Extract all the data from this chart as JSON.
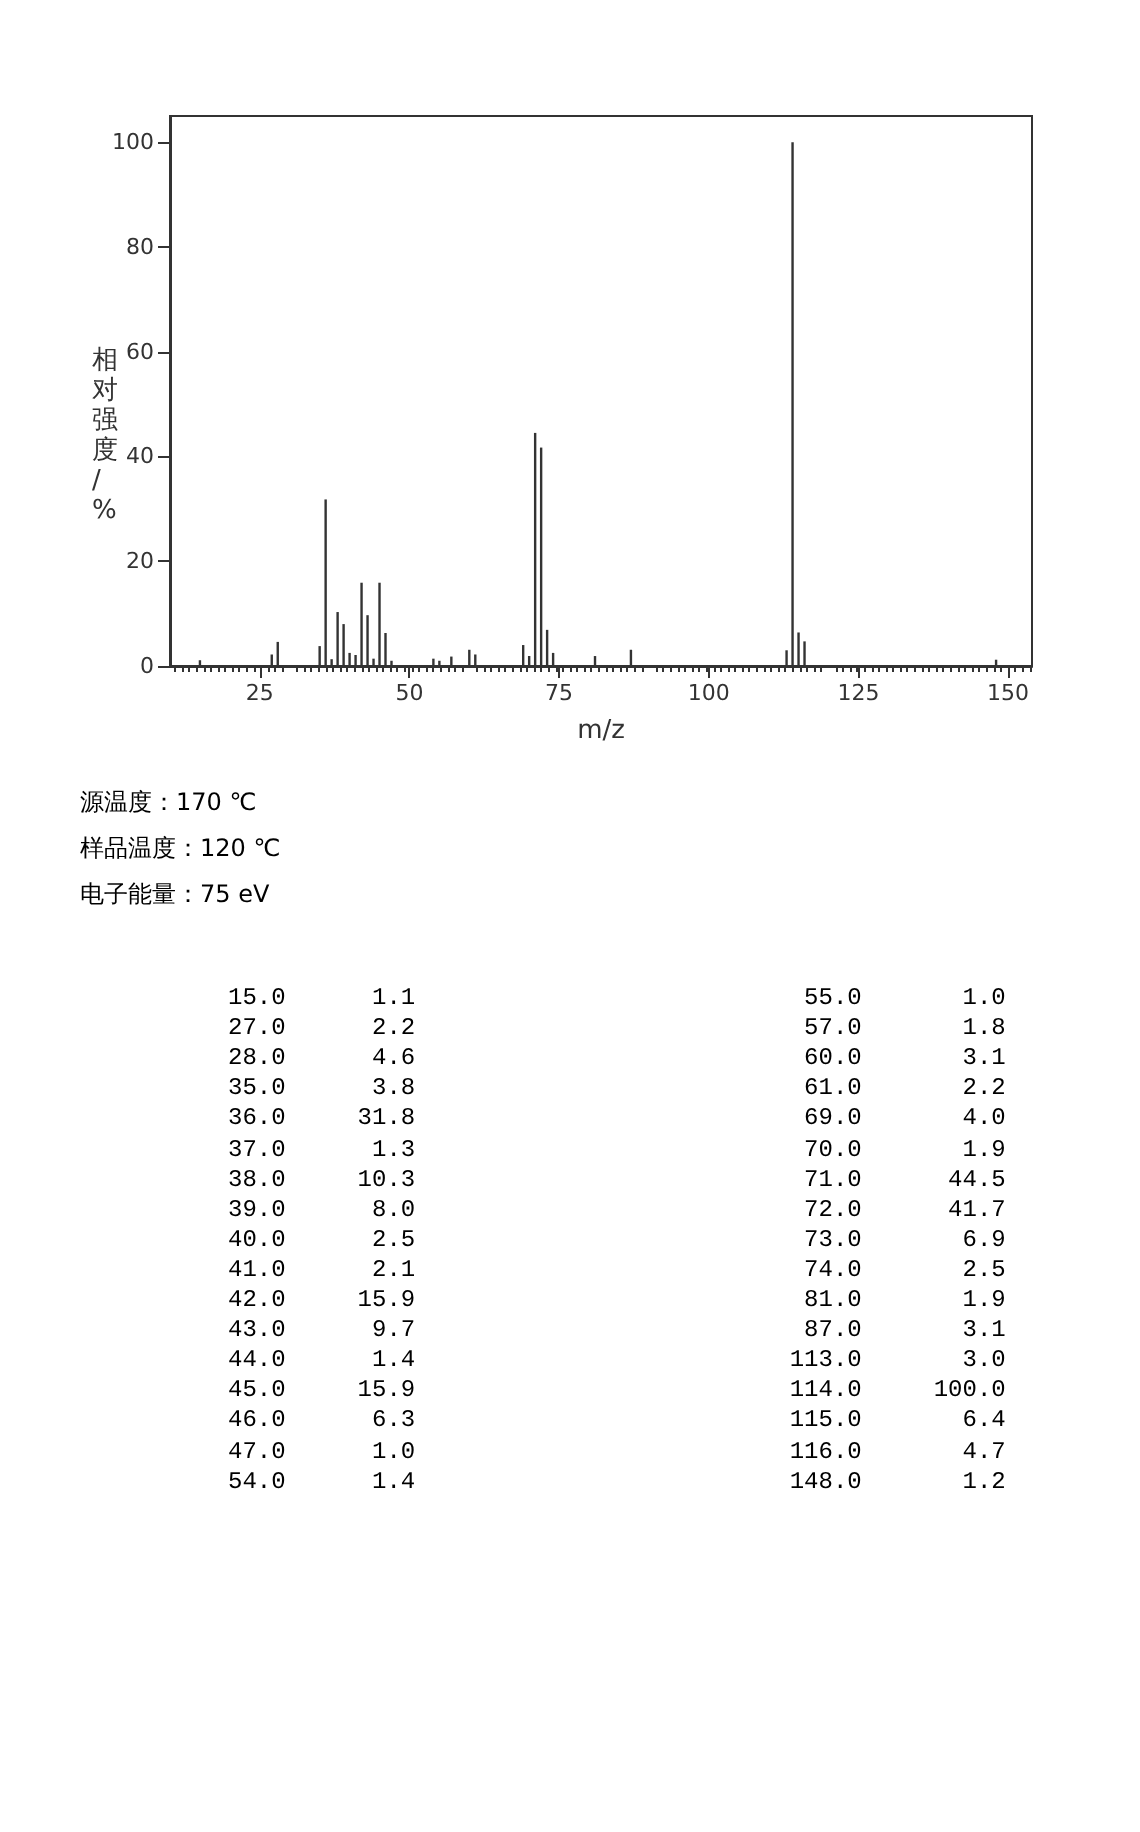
{
  "chart_data": [
    {
      "type": "bar",
      "xlabel": "m/z",
      "ylabel": "相对强度/%",
      "x": [
        15,
        27,
        28,
        35,
        36,
        37,
        38,
        39,
        40,
        41,
        42,
        43,
        44,
        45,
        46,
        47,
        54,
        55,
        57,
        60,
        61,
        69,
        70,
        71,
        72,
        73,
        74,
        81,
        87,
        113,
        114,
        115,
        116,
        148
      ],
      "values": [
        1.1,
        2.2,
        4.6,
        3.8,
        31.8,
        1.3,
        10.3,
        8.0,
        2.5,
        2.1,
        15.9,
        9.7,
        1.4,
        15.9,
        6.3,
        1.0,
        1.4,
        1.0,
        1.8,
        3.1,
        2.2,
        4.0,
        1.9,
        44.5,
        41.7,
        6.9,
        2.5,
        1.9,
        3.1,
        3.0,
        100.0,
        6.4,
        4.7,
        1.2
      ],
      "color": "#333333",
      "xlim": [
        10,
        154
      ],
      "xticks": [
        25,
        50,
        75,
        100,
        125,
        150
      ],
      "ylim": [
        0,
        105
      ],
      "yticks": [
        0,
        20,
        40,
        60,
        80,
        100
      ],
      "annotations": [
        "源温度：170 ℃",
        "样品温度：120 ℃",
        "电子能量：75 eV"
      ]
    },
    {
      "type": "other",
      "annotations": [
        "15.0 1.1 55.0 1.0",
        "27.0 2.2 57.0 1.8",
        "28.0 4.6 60.0 3.1",
        "35.0 3.8 61.0 2.2",
        "36.0 31.8 69.0 4.0",
        "37.0 1.3 70.0 1.9",
        "38.0 10.3 71.0 44.5",
        "39.0 8.0 72.0 41.7",
        "40.0 2.5 73.0 6.9",
        "41.0 2.1 74.0 2.5",
        "42.0 15.9 81.0 1.9",
        "43.0 9.7 87.0 3.1",
        "44.0 1.4 113.0 3.0",
        "45.0 15.9 114.0 100.0",
        "46.0 6.3 115.0 6.4",
        "47.0 1.0 116.0 4.7",
        "54.0 1.4 148.0 1.2"
      ]
    }
  ]
}
